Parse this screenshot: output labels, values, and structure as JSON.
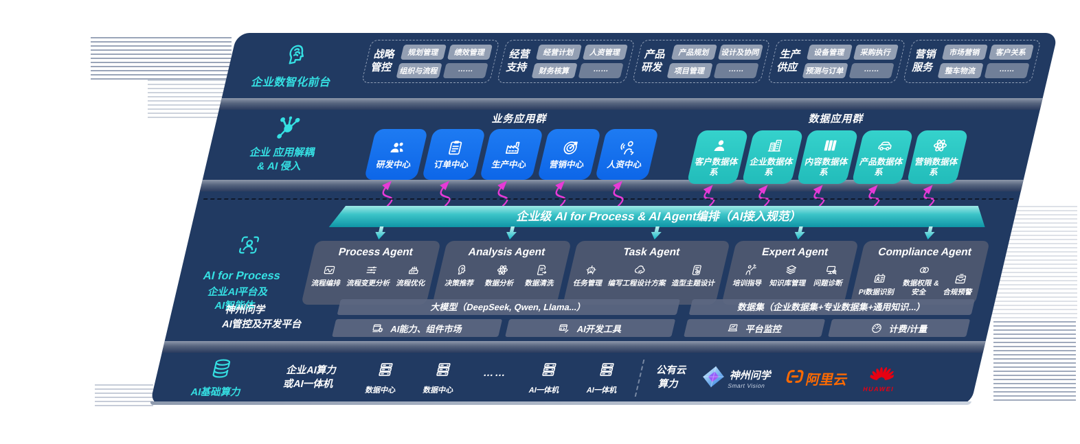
{
  "front_desk": {
    "label": "企业数智化前台",
    "icon": "brain-head-icon",
    "groups": [
      {
        "title": "战略管控",
        "pills": [
          "规划管理",
          "绩效管理",
          "组织与流程",
          "……"
        ]
      },
      {
        "title": "经营支持",
        "pills": [
          "经营计划",
          "人资管理",
          "财务核算",
          "……"
        ]
      },
      {
        "title": "产品研发",
        "pills": [
          "产品规划",
          "设计及协同",
          "项目管理",
          "……"
        ]
      },
      {
        "title": "生产供应",
        "pills": [
          "设备管理",
          "采购执行",
          "预测与订单",
          "……"
        ]
      },
      {
        "title": "营销服务",
        "pills": [
          "市场营销",
          "客户关系",
          "整车物流",
          "……"
        ]
      }
    ]
  },
  "app_layer": {
    "icon": "molecule-icon",
    "label_lines": [
      "企业 应用解耦",
      "& AI 侵入"
    ],
    "business": {
      "title": "业务应用群",
      "tiles": [
        {
          "label": "研发中心",
          "icon": "team-icon"
        },
        {
          "label": "订单中心",
          "icon": "clipboard-icon"
        },
        {
          "label": "生产中心",
          "icon": "factory-icon"
        },
        {
          "label": "营销中心",
          "icon": "target-icon"
        },
        {
          "label": "人资中心",
          "icon": "hr-person-icon"
        }
      ]
    },
    "data": {
      "title": "数据应用群",
      "tiles": [
        {
          "label": "客户数据体系",
          "icon": "customer-icon"
        },
        {
          "label": "企业数据体系",
          "icon": "building-icon"
        },
        {
          "label": "内容数据体系",
          "icon": "content-icon"
        },
        {
          "label": "产品数据体系",
          "icon": "car-icon"
        },
        {
          "label": "营销数据体系",
          "icon": "atom-icon"
        }
      ]
    }
  },
  "ai_bus": {
    "label": "企业级 AI for Process & AI Agent编排（AI接入规范）"
  },
  "ai_platform": {
    "icon": "person-scan-icon",
    "label_lines": [
      "AI for Process",
      "企业AI平台及",
      "AI智能体"
    ],
    "agents": [
      {
        "title": "Process Agent",
        "items": [
          {
            "label": "流程编排",
            "icon": "flow-icon"
          },
          {
            "label": "流程变更分析",
            "icon": "sliders-icon"
          },
          {
            "label": "流程优化",
            "icon": "machine-icon"
          }
        ]
      },
      {
        "title": "Analysis Agent",
        "items": [
          {
            "label": "决策推荐",
            "icon": "decision-head-icon"
          },
          {
            "label": "数据分析",
            "icon": "atom-icon"
          },
          {
            "label": "数据清洗",
            "icon": "doc-clean-icon"
          }
        ]
      },
      {
        "title": "Task Agent",
        "items": [
          {
            "label": "任务管理",
            "icon": "robot-icon"
          },
          {
            "label": "编写工程设计方案",
            "icon": "cloud-edit-icon"
          },
          {
            "label": "造型主题设计",
            "icon": "design-board-icon"
          }
        ]
      },
      {
        "title": "Expert Agent",
        "items": [
          {
            "label": "培训指导",
            "icon": "training-icon"
          },
          {
            "label": "知识库管理",
            "icon": "layers-icon"
          },
          {
            "label": "问题诊断",
            "icon": "diagnose-icon"
          }
        ]
      },
      {
        "title": "Compliance Agent",
        "items": [
          {
            "label": "PI数据识别",
            "icon": "id-card-icon"
          },
          {
            "label": "数据权限 &\n安全",
            "icon": "rings-icon"
          },
          {
            "label": "合规预警",
            "icon": "inbox-alert-icon"
          }
        ]
      }
    ],
    "platform": {
      "label_lines": [
        "神州问学",
        "AI管控及开发平台"
      ],
      "model_bar": "大模型（DeepSeek, Qwen, Llama...）",
      "dataset_bar": "数据集（企业数据集+专业数据集+通用知识...）",
      "left_tools": [
        {
          "label": "AI能力、组件市场",
          "icon": "components-icon"
        },
        {
          "label": "AI开发工具",
          "icon": "devtools-icon"
        }
      ],
      "right_tools": [
        {
          "label": "平台监控",
          "icon": "monitor-icon"
        },
        {
          "label": "计费/计量",
          "icon": "gauge-icon"
        }
      ]
    }
  },
  "compute": {
    "icon": "database-icon",
    "label": "AI基础算力",
    "onprem_lines": [
      "企业AI算力",
      "或AI一体机"
    ],
    "nodes": [
      {
        "label": "数据中心",
        "icon": "server-icon"
      },
      {
        "label": "数据中心",
        "icon": "server-icon"
      },
      {
        "label": "……",
        "icon": ""
      },
      {
        "label": "AI一体机",
        "icon": "server-icon"
      },
      {
        "label": "AI一体机",
        "icon": "server-icon"
      }
    ],
    "public_cloud_lines": [
      "公有云",
      "算力"
    ],
    "logos": {
      "smart_vision": {
        "name": "神州问学",
        "sub": "Smart Vision"
      },
      "aliyun": {
        "name": "阿里云"
      },
      "huawei": {
        "name": "HUAWEI"
      }
    }
  },
  "colors": {
    "slab_navy": "#213a62",
    "blue_tile": "#1470ee",
    "teal_tile": "#2cc8c3",
    "accent_teal": "#35e0e3",
    "arrow_magenta": "#e73ad6",
    "aliyun_orange": "#ff6a00",
    "huawei_red": "#e60012"
  }
}
